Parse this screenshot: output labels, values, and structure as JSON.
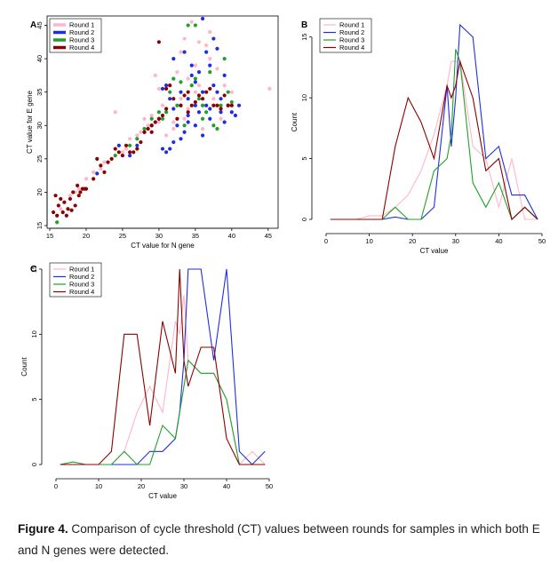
{
  "figure": {
    "caption_label": "Figure 4.",
    "caption_text": " Comparison of cycle threshold (CT) values between rounds for samples in which both E and N genes were detected."
  },
  "chart_data": [
    {
      "panel": "A",
      "type": "scatter",
      "title": "",
      "xlabel": "CT value for N gene",
      "ylabel": "CT value for E gene",
      "xlim": [
        15,
        46
      ],
      "ylim": [
        15,
        46
      ],
      "xticks": [
        15,
        20,
        25,
        30,
        35,
        40,
        45
      ],
      "yticks": [
        15,
        20,
        25,
        30,
        35,
        40,
        45
      ],
      "legend": {
        "placement": "top-left",
        "entries": [
          "Round 1",
          "Round 2",
          "Round 3",
          "Round 4"
        ]
      },
      "series": [
        {
          "name": "Round 1",
          "color": "#ffb6c8",
          "points": [
            [
              16.5,
              17.5
            ],
            [
              17,
              18.5
            ],
            [
              17.8,
              19.5
            ],
            [
              18.5,
              20
            ],
            [
              19,
              20.5
            ],
            [
              20,
              22
            ],
            [
              21,
              23
            ],
            [
              22,
              23.5
            ],
            [
              22.5,
              24.5
            ],
            [
              23.5,
              25
            ],
            [
              24,
              32
            ],
            [
              24.5,
              27
            ],
            [
              25,
              26
            ],
            [
              25.5,
              26.5
            ],
            [
              26,
              28
            ],
            [
              27,
              28.5
            ],
            [
              27.5,
              29
            ],
            [
              28,
              31
            ],
            [
              28.5,
              30
            ],
            [
              29,
              31.5
            ],
            [
              29.5,
              37.5
            ],
            [
              30,
              35.5
            ],
            [
              30.5,
              33
            ],
            [
              31,
              32
            ],
            [
              31.5,
              36
            ],
            [
              32,
              30.5
            ],
            [
              32.5,
              38
            ],
            [
              33,
              41
            ],
            [
              33.5,
              43
            ],
            [
              34,
              37
            ],
            [
              34.5,
              45.5
            ],
            [
              35,
              39
            ],
            [
              35.5,
              36
            ],
            [
              36,
              33
            ],
            [
              36.5,
              42
            ],
            [
              37,
              40
            ],
            [
              37.5,
              34
            ],
            [
              38,
              38.5
            ],
            [
              38.5,
              31
            ],
            [
              39,
              36
            ],
            [
              40,
              35
            ],
            [
              45.2,
              35.5
            ],
            [
              32,
              29.5
            ],
            [
              33,
              34
            ],
            [
              34,
              32.5
            ],
            [
              35,
              35
            ],
            [
              36,
              29.5
            ],
            [
              30,
              30.5
            ],
            [
              31,
              28.5
            ],
            [
              33.5,
              31
            ],
            [
              35.5,
              42.5
            ],
            [
              37,
              44
            ]
          ]
        },
        {
          "name": "Round 2",
          "color": "#1f2ee0",
          "points": [
            [
              21.5,
              22.8
            ],
            [
              24.5,
              27
            ],
            [
              26,
              25.5
            ],
            [
              27,
              27
            ],
            [
              28,
              29
            ],
            [
              29,
              30
            ],
            [
              30,
              31
            ],
            [
              30.5,
              26.5
            ],
            [
              31,
              26
            ],
            [
              31,
              36
            ],
            [
              31.5,
              34
            ],
            [
              32,
              32.5
            ],
            [
              32,
              40
            ],
            [
              32.5,
              30
            ],
            [
              33,
              35
            ],
            [
              33,
              33
            ],
            [
              33.5,
              29
            ],
            [
              33.5,
              41
            ],
            [
              34,
              34
            ],
            [
              34,
              31.5
            ],
            [
              34.5,
              37.5
            ],
            [
              34.5,
              39
            ],
            [
              35,
              33
            ],
            [
              35,
              36.5
            ],
            [
              35.5,
              38
            ],
            [
              35.5,
              32
            ],
            [
              36,
              46
            ],
            [
              36,
              35
            ],
            [
              36.5,
              41
            ],
            [
              36.5,
              33
            ],
            [
              37,
              39
            ],
            [
              37,
              31
            ],
            [
              37.5,
              36
            ],
            [
              37.5,
              43
            ],
            [
              38,
              41.5
            ],
            [
              38,
              35
            ],
            [
              38.5,
              34
            ],
            [
              38.5,
              32
            ],
            [
              39,
              37.5
            ],
            [
              39,
              30.5
            ],
            [
              39.5,
              33
            ],
            [
              40,
              32
            ],
            [
              41,
              33
            ],
            [
              40.5,
              31.5
            ],
            [
              33,
              28
            ],
            [
              32,
              27.5
            ],
            [
              31.5,
              26.5
            ],
            [
              30.5,
              35.5
            ],
            [
              36,
              28.5
            ],
            [
              37,
              32.5
            ],
            [
              35,
              30
            ],
            [
              34,
              30.5
            ]
          ]
        },
        {
          "name": "Round 3",
          "color": "#22a02a",
          "points": [
            [
              16,
              15.5
            ],
            [
              24,
              25.5
            ],
            [
              26,
              27
            ],
            [
              27,
              28
            ],
            [
              29,
              31
            ],
            [
              30,
              32
            ],
            [
              30.5,
              31
            ],
            [
              31.5,
              35
            ],
            [
              32,
              37
            ],
            [
              32.5,
              33
            ],
            [
              33,
              36.5
            ],
            [
              33.5,
              30
            ],
            [
              34,
              45
            ],
            [
              34.5,
              36
            ],
            [
              35,
              37
            ],
            [
              35.5,
              34
            ],
            [
              36,
              31
            ],
            [
              36.5,
              32
            ],
            [
              37,
              38
            ],
            [
              37.5,
              30
            ],
            [
              38,
              29.5
            ],
            [
              38.5,
              33
            ],
            [
              39,
              40
            ],
            [
              39.5,
              35
            ],
            [
              40,
              33.5
            ],
            [
              28,
              29.5
            ],
            [
              31,
              32
            ],
            [
              35,
              45
            ],
            [
              36,
              33
            ]
          ]
        },
        {
          "name": "Round 4",
          "color": "#8b0000",
          "points": [
            [
              15.5,
              17
            ],
            [
              15.8,
              19.5
            ],
            [
              16,
              16.5
            ],
            [
              16.2,
              18
            ],
            [
              16.5,
              19
            ],
            [
              16.8,
              17
            ],
            [
              17,
              18.5
            ],
            [
              17.3,
              16.5
            ],
            [
              17.5,
              17.5
            ],
            [
              17.8,
              19
            ],
            [
              18,
              17.3
            ],
            [
              18.2,
              20
            ],
            [
              18.5,
              18
            ],
            [
              18.8,
              21
            ],
            [
              19,
              19.5
            ],
            [
              19.2,
              20
            ],
            [
              19.5,
              20.5
            ],
            [
              19.8,
              20.5
            ],
            [
              20,
              20.5
            ],
            [
              21,
              22
            ],
            [
              21.5,
              25
            ],
            [
              22,
              24
            ],
            [
              22.5,
              23
            ],
            [
              23,
              24.5
            ],
            [
              23.5,
              25
            ],
            [
              24,
              26.5
            ],
            [
              24.5,
              26
            ],
            [
              25,
              25.5
            ],
            [
              25.5,
              27
            ],
            [
              26,
              26
            ],
            [
              26.5,
              26
            ],
            [
              27,
              26.5
            ],
            [
              27.5,
              27.5
            ],
            [
              28,
              29
            ],
            [
              28.5,
              29.5
            ],
            [
              29,
              30
            ],
            [
              29,
              29
            ],
            [
              29.5,
              30.5
            ],
            [
              30,
              42.5
            ],
            [
              30,
              31
            ],
            [
              30.5,
              31.5
            ],
            [
              31,
              32.5
            ],
            [
              31,
              35.5
            ],
            [
              31.5,
              36
            ],
            [
              32,
              34
            ],
            [
              32.5,
              31
            ],
            [
              33,
              33
            ],
            [
              33.5,
              34.5
            ],
            [
              34,
              35
            ],
            [
              34,
              32
            ],
            [
              34.5,
              33
            ],
            [
              35,
              33.5
            ],
            [
              35.5,
              34.5
            ],
            [
              36,
              34
            ],
            [
              36.5,
              35
            ],
            [
              37,
              35.5
            ],
            [
              37.5,
              33
            ],
            [
              38,
              33
            ],
            [
              38.5,
              32.5
            ],
            [
              39,
              34.5
            ],
            [
              39.5,
              33
            ],
            [
              40,
              33
            ]
          ]
        }
      ]
    },
    {
      "panel": "B",
      "type": "line",
      "xlabel": "CT value",
      "ylabel": "Count",
      "xlim": [
        0,
        50
      ],
      "ylim": [
        0,
        16
      ],
      "xticks": [
        0,
        10,
        20,
        30,
        40,
        50
      ],
      "yticks": [
        0,
        5,
        10,
        15
      ],
      "x": [
        1,
        4,
        7,
        10,
        13,
        16,
        19,
        22,
        25,
        28,
        29,
        30,
        31,
        34,
        37,
        40,
        43,
        46,
        49
      ],
      "legend": {
        "placement": "top-left",
        "entries": [
          "Round 1",
          "Round 2",
          "Round 3",
          "Round 4"
        ]
      },
      "series": [
        {
          "name": "Round 1",
          "color": "#ffb6c8",
          "values": [
            0,
            0,
            0,
            0.3,
            0.3,
            1,
            2,
            4,
            7,
            11,
            13,
            13,
            13,
            6,
            5,
            1,
            5,
            0,
            0
          ]
        },
        {
          "name": "Round 2",
          "color": "#1f2ee0",
          "values": [
            0,
            0,
            0,
            0,
            0,
            0.2,
            0,
            0,
            1,
            11,
            6,
            10,
            16,
            15,
            5,
            6,
            2,
            2,
            0
          ]
        },
        {
          "name": "Round 3",
          "color": "#22a02a",
          "values": [
            0,
            0,
            0,
            0,
            0,
            1,
            0,
            0,
            4,
            5,
            7,
            14,
            13,
            3,
            1,
            3,
            0,
            1,
            0
          ]
        },
        {
          "name": "Round 4",
          "color": "#8b0000",
          "values": [
            0,
            0,
            0,
            0,
            0,
            6,
            10,
            8,
            5,
            11,
            10,
            11,
            13,
            10,
            4,
            5,
            0,
            1,
            0
          ]
        }
      ]
    },
    {
      "panel": "C",
      "type": "line",
      "xlabel": "CT value",
      "ylabel": "Count",
      "xlim": [
        0,
        50
      ],
      "ylim": [
        0,
        15
      ],
      "xticks": [
        0,
        10,
        20,
        30,
        40,
        50
      ],
      "yticks": [
        0,
        5,
        10,
        15
      ],
      "x": [
        1,
        4,
        7,
        10,
        13,
        16,
        19,
        22,
        25,
        28,
        29,
        30,
        31,
        34,
        37,
        40,
        43,
        46,
        49
      ],
      "legend": {
        "placement": "top-left",
        "entries": [
          "Round 1",
          "Round 2",
          "Round 3",
          "Round 4"
        ]
      },
      "series": [
        {
          "name": "Round 1",
          "color": "#ffb6c8",
          "values": [
            0,
            0,
            0,
            0,
            0,
            1,
            4,
            6,
            4,
            11,
            10,
            13,
            8,
            7,
            7,
            5,
            0,
            1,
            0
          ]
        },
        {
          "name": "Round 2",
          "color": "#1f2ee0",
          "values": [
            0,
            0,
            0,
            0,
            0,
            0,
            0,
            1,
            1,
            2,
            4,
            8,
            15,
            15,
            8,
            15,
            1,
            0,
            1
          ]
        },
        {
          "name": "Round 3",
          "color": "#22a02a",
          "values": [
            0,
            0.2,
            0,
            0,
            0,
            1,
            0,
            0,
            3,
            2,
            4,
            6,
            8,
            7,
            7,
            5,
            0,
            0,
            0
          ]
        },
        {
          "name": "Round 4",
          "color": "#8b0000",
          "values": [
            0,
            0,
            0,
            0,
            1,
            10,
            10,
            3,
            11,
            7,
            15,
            8,
            6,
            9,
            9,
            2,
            0,
            0,
            0
          ]
        }
      ]
    }
  ]
}
